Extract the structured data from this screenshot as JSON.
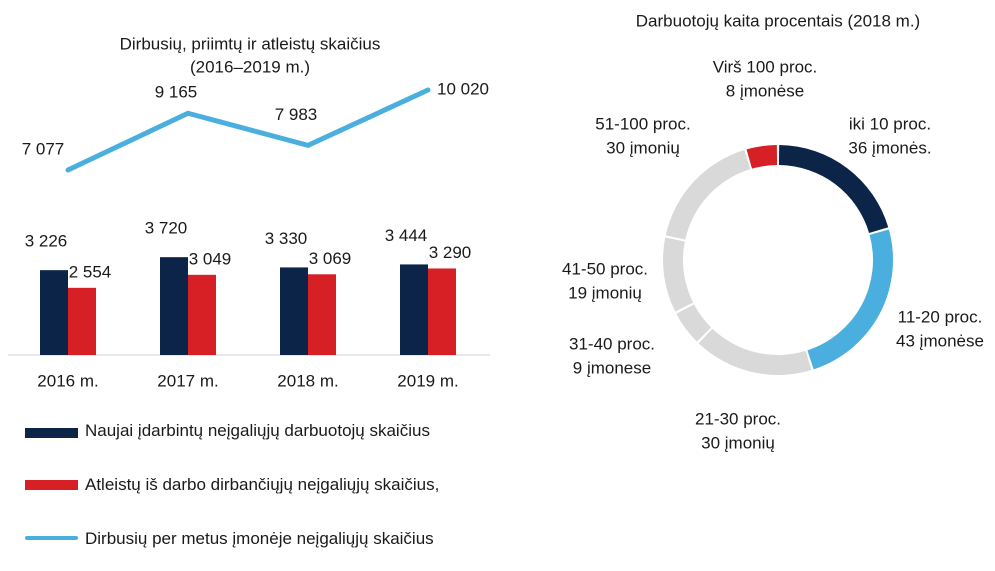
{
  "chart_data": [
    {
      "type": "bar-line",
      "title": "Dirbusių, priimtų ir atleistų skaičius",
      "subtitle": "(2016–2019 m.)",
      "categories": [
        "2016 m.",
        "2017 m.",
        "2018 m.",
        "2019 m."
      ],
      "series": [
        {
          "name": "Naujai įdarbintų neįgaliųjų darbuotojų skaičius",
          "color": "#0d2449",
          "kind": "bar",
          "values": [
            3226,
            3720,
            3330,
            3444
          ],
          "value_labels": [
            "3 226",
            "3 720",
            "3 330",
            "3 444"
          ]
        },
        {
          "name": " Atleistų iš darbo dirbančiųjų neįgaliųjų skaičius,",
          "color": "#d71f26",
          "kind": "bar",
          "values": [
            2554,
            3049,
            3069,
            3290
          ],
          "value_labels": [
            "2 554",
            "3 049",
            "3 069",
            "3 290"
          ]
        },
        {
          "name": "Dirbusių per metus įmonėje neįgaliųjų skaičius",
          "color": "#4aaede",
          "kind": "line",
          "values": [
            7077,
            9165,
            7983,
            10020
          ],
          "value_labels": [
            "7 077",
            "9 165",
            "7 983",
            "10 020"
          ]
        }
      ]
    },
    {
      "type": "donut",
      "title": "Darbuotojų kaita procentais (2018 m.)",
      "categories": [
        "iki 10 proc.",
        "11-20 proc.",
        "21-30 proc.",
        "31-40 proc.",
        "41-50 proc.",
        "51-100 proc.",
        "Virš 100 proc."
      ],
      "values": [
        36,
        43,
        30,
        9,
        19,
        30,
        8
      ],
      "value_labels": [
        "36 įmonės.",
        "43 įmonėse",
        "30 įmonių",
        "9 įmonese",
        "19 įmonių",
        "30 įmonių",
        "8 įmonėse"
      ],
      "colors": [
        "#0d2449",
        "#4aaede",
        "#d9d9d9",
        "#d9d9d9",
        "#d9d9d9",
        "#d9d9d9",
        "#d71f26"
      ]
    }
  ]
}
